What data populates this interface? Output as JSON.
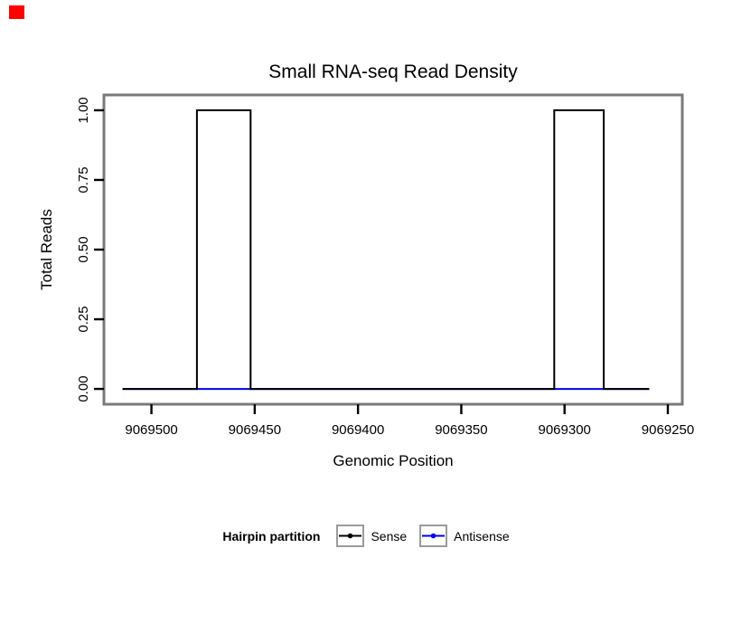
{
  "marker": {
    "color": "#ff0000"
  },
  "chart_data": {
    "type": "line",
    "title": "Small RNA-seq Read Density",
    "xlabel": "Genomic Position",
    "ylabel": "Total Reads",
    "x_reversed": true,
    "xlim": [
      9069523,
      9069243
    ],
    "ylim": [
      -0.055,
      1.055
    ],
    "x_ticks": [
      9069500,
      9069450,
      9069400,
      9069350,
      9069300,
      9069250
    ],
    "y_ticks": [
      {
        "v": 0.0,
        "label": "0.00"
      },
      {
        "v": 0.25,
        "label": "0.25"
      },
      {
        "v": 0.5,
        "label": "0.50"
      },
      {
        "v": 0.75,
        "label": "0.75"
      },
      {
        "v": 1.0,
        "label": "1.00"
      }
    ],
    "grid": false,
    "panel_border_color": "#7a7a7a",
    "series": [
      {
        "name": "Antisense",
        "color": "#0000ee",
        "points": [
          [
            9069514,
            0
          ],
          [
            9069259,
            0
          ]
        ]
      },
      {
        "name": "Sense",
        "color": "#000000",
        "points": [
          [
            9069514,
            0
          ],
          [
            9069478,
            0
          ],
          [
            9069478,
            1
          ],
          [
            9069452,
            1
          ],
          [
            9069452,
            0
          ],
          [
            9069305,
            0
          ],
          [
            9069305,
            1
          ],
          [
            9069281,
            1
          ],
          [
            9069281,
            0
          ],
          [
            9069259,
            0
          ]
        ]
      }
    ],
    "legend": {
      "title": "Hairpin partition",
      "position": "bottom",
      "entries": [
        {
          "label": "Sense",
          "color": "#000000"
        },
        {
          "label": "Antisense",
          "color": "#0000ee"
        }
      ]
    }
  }
}
